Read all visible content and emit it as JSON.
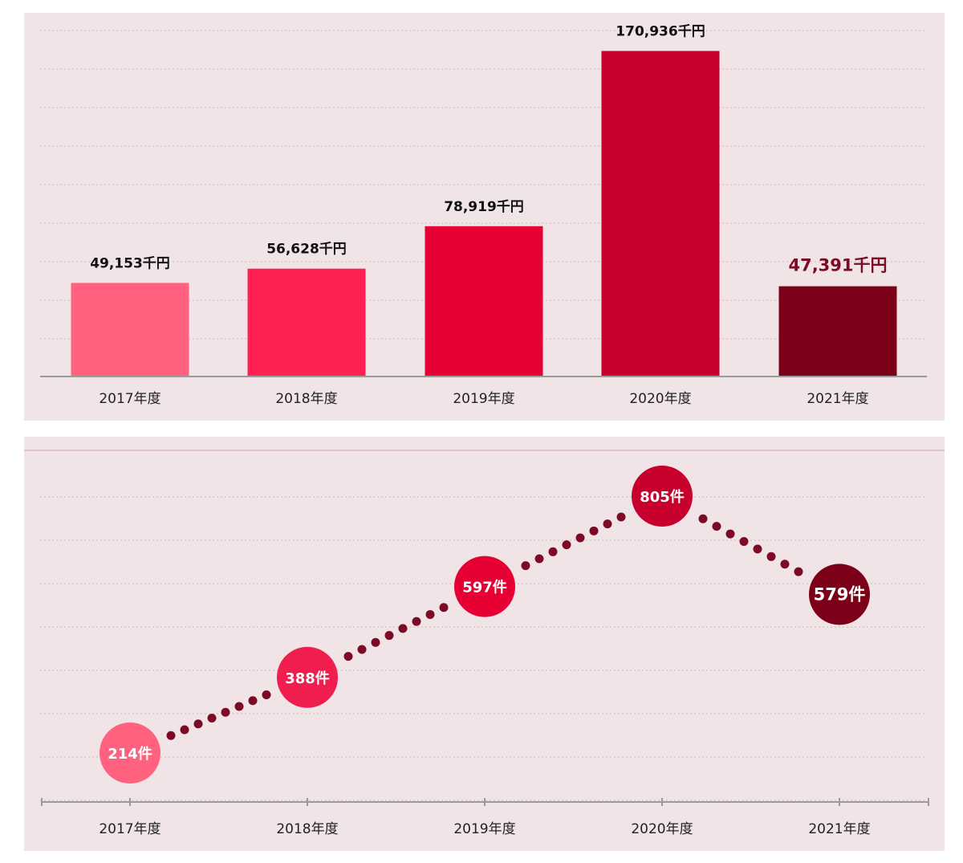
{
  "chart_data": [
    {
      "type": "bar",
      "categories": [
        "2017年度",
        "2018年度",
        "2019年度",
        "2020年度",
        "2021年度"
      ],
      "values": [
        49153,
        56628,
        78919,
        170936,
        47391
      ],
      "value_labels": [
        "49,153千円",
        "56,628千円",
        "78,919千円",
        "170,936千円",
        "47,391千円"
      ],
      "colors": [
        "#ff617f",
        "#ff2151",
        "#e60033",
        "#c8002d",
        "#7d0019"
      ],
      "highlight_index": 4,
      "highlight_label_color": "#7d0a24",
      "ylim": [
        0,
        180000
      ],
      "grid": true
    },
    {
      "type": "line",
      "categories": [
        "2017年度",
        "2018年度",
        "2019年度",
        "2020年度",
        "2021年度"
      ],
      "values": [
        214,
        388,
        597,
        805,
        579
      ],
      "value_labels": [
        "214件",
        "388件",
        "597件",
        "805件",
        "579件"
      ],
      "colors": [
        "#ff617f",
        "#f01e4f",
        "#e60033",
        "#c8002d",
        "#7d0019"
      ],
      "line_color": "#7d0a24",
      "line_style": "dotted",
      "highlight_index": 4,
      "ylim": [
        100,
        900
      ],
      "grid": true
    }
  ]
}
